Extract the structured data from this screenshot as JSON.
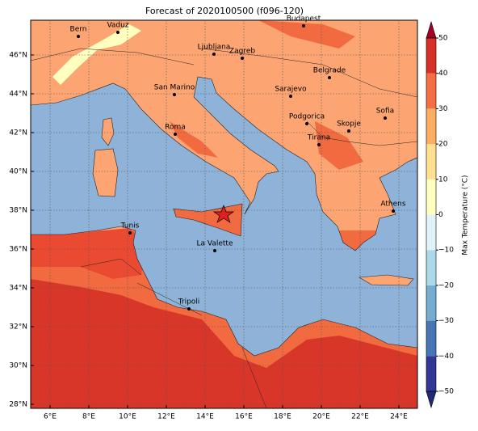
{
  "title": "Forecast of 2020100500 (f096-120)",
  "lon_labels": [
    "6°E",
    "8°E",
    "10°E",
    "12°E",
    "14°E",
    "16°E",
    "18°E",
    "20°E",
    "22°E",
    "24°E"
  ],
  "lat_labels": [
    "28°N",
    "30°N",
    "32°N",
    "34°N",
    "36°N",
    "38°N",
    "40°N",
    "42°N",
    "44°N",
    "46°N"
  ],
  "cities": [
    "Bern",
    "Vaduz",
    "Budapest",
    "Ljubljana",
    "Zagreb",
    "Belgrade",
    "San Marino",
    "Sarajevo",
    "Podgorica",
    "Skopje",
    "Sofia",
    "Roma",
    "Tirana",
    "Athens",
    "Tunis",
    "La Valette",
    "Tripoli"
  ],
  "colorbar": {
    "label": "Max Temperature (°C)",
    "ticks": [
      {
        "value": -50,
        "label": "−50"
      },
      {
        "value": -40,
        "label": "−40"
      },
      {
        "value": -30,
        "label": "−30"
      },
      {
        "value": -20,
        "label": "−20"
      },
      {
        "value": -10,
        "label": "−10"
      },
      0,
      10,
      20,
      30,
      40,
      50
    ],
    "colors": [
      "#313695",
      "#4575b4",
      "#74add1",
      "#abd9e9",
      "#e0f3f8",
      "#ffffbf",
      "#fee090",
      "#fdae61",
      "#f46d43",
      "#d73027"
    ],
    "under": "#1f2a78",
    "over": "#a50026"
  }
}
